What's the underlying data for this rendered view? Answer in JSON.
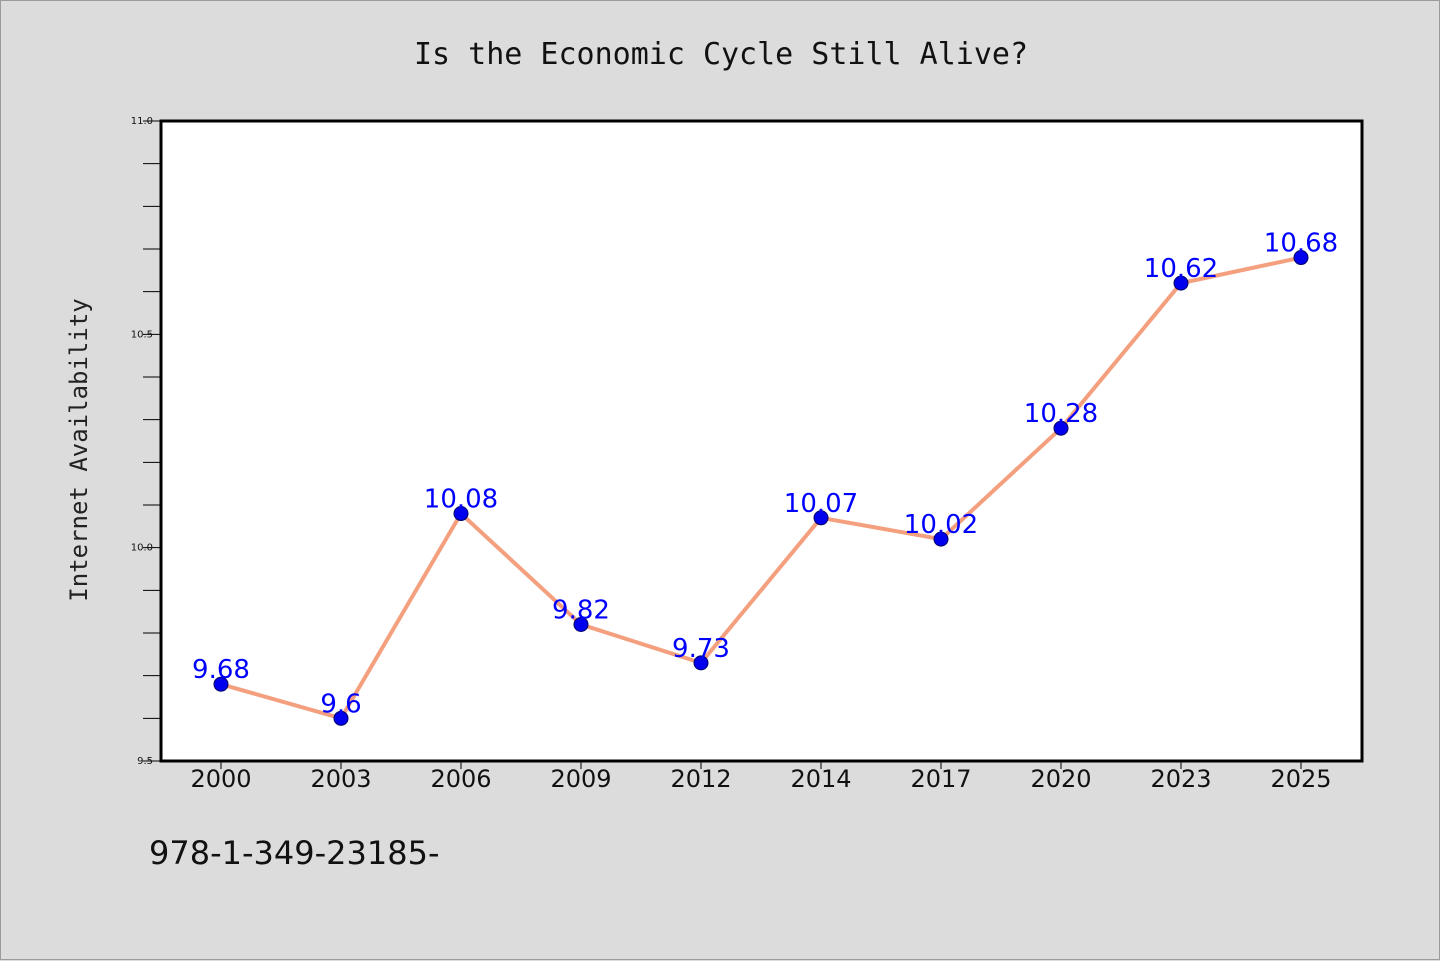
{
  "chart_data": {
    "type": "line",
    "title": "Is the Economic Cycle Still Alive?",
    "xlabel": "",
    "ylabel": "Internet Availability",
    "categories": [
      "2000",
      "2003",
      "2006",
      "2009",
      "2012",
      "2014",
      "2017",
      "2020",
      "2023",
      "2025"
    ],
    "values": [
      9.68,
      9.6,
      10.08,
      9.82,
      9.73,
      10.07,
      10.02,
      10.28,
      10.62,
      10.68
    ],
    "data_labels": [
      "9.68",
      "9.6",
      "10.08",
      "9.82",
      "9.73",
      "10.07",
      "10.02",
      "10.28",
      "10.62",
      "10.68"
    ],
    "ylim": [
      9.5,
      11.0
    ],
    "y_ticks": [
      "9.5",
      "10.0",
      "10.5",
      "11.0"
    ],
    "y_minor_step": 0.1,
    "grid": false,
    "legend": "none",
    "colors": {
      "line": "#f4a07e",
      "marker": "#0000ee",
      "label": "#0000ff",
      "background": "#dcdcdc",
      "plot_background": "#ffffff"
    }
  },
  "footer_text": "978-1-349-23185-"
}
